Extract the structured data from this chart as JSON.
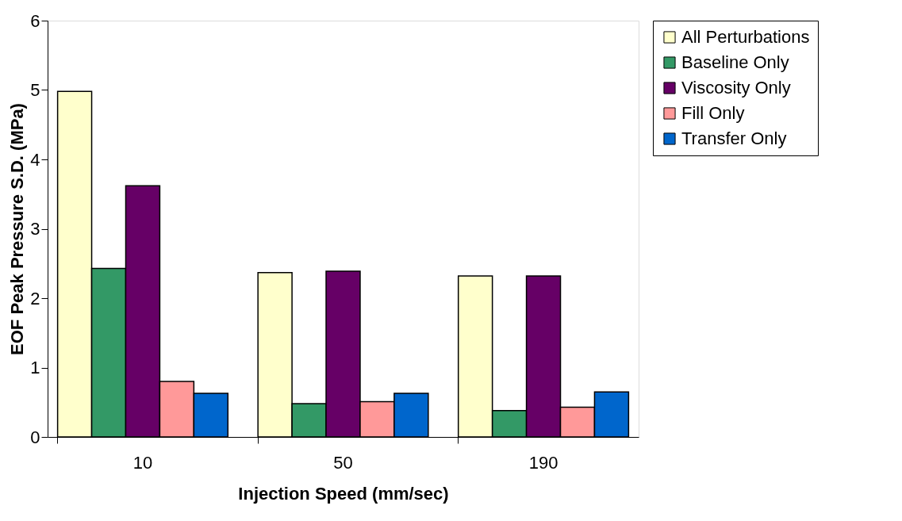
{
  "chart_data": {
    "type": "bar",
    "xlabel": "Injection Speed (mm/sec)",
    "ylabel": "EOF Peak Pressure S.D. (MPa)",
    "categories": [
      "10",
      "50",
      "190"
    ],
    "series": [
      {
        "name": "All Perturbations",
        "color": "#ffffcc",
        "values": [
          4.98,
          2.37,
          2.32
        ]
      },
      {
        "name": "Baseline Only",
        "color": "#339966",
        "values": [
          2.43,
          0.48,
          0.38
        ]
      },
      {
        "name": "Viscosity Only",
        "color": "#660066",
        "values": [
          3.62,
          2.39,
          2.32
        ]
      },
      {
        "name": "Fill Only",
        "color": "#ff9999",
        "values": [
          0.8,
          0.51,
          0.43
        ]
      },
      {
        "name": "Transfer Only",
        "color": "#0066cc",
        "values": [
          0.63,
          0.63,
          0.65
        ]
      }
    ],
    "ylim": [
      0,
      6
    ],
    "yticks": [
      0,
      1,
      2,
      3,
      4,
      5,
      6
    ],
    "grid": false,
    "legend": "right"
  }
}
